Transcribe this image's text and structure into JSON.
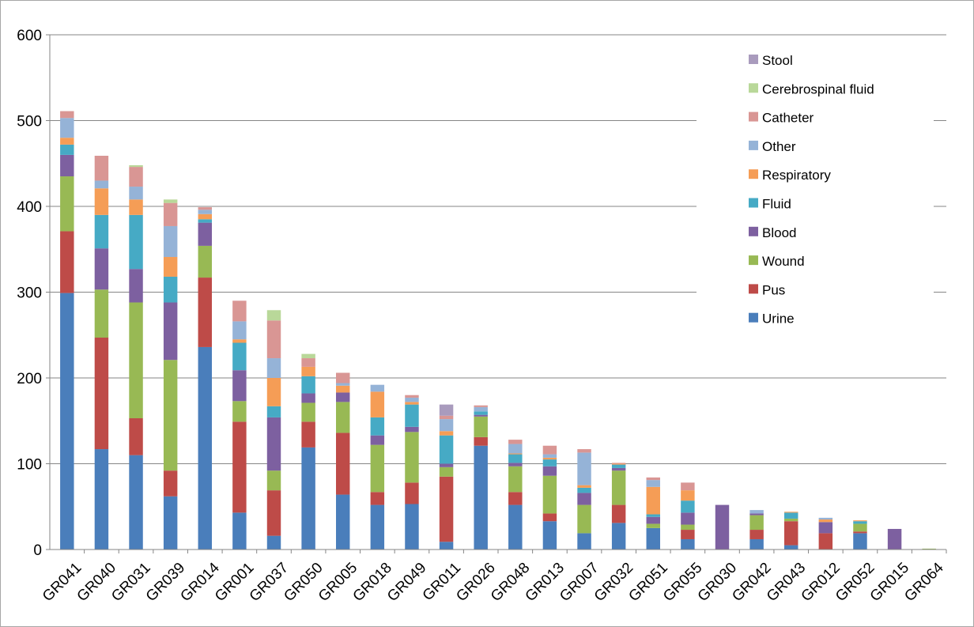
{
  "chart_data": {
    "type": "bar",
    "stacked": true,
    "ylim": [
      0,
      600
    ],
    "yticks": [
      0,
      100,
      200,
      300,
      400,
      500,
      600
    ],
    "grid": true,
    "legend_position": "right",
    "categories": [
      "GR041",
      "GR040",
      "GR031",
      "GR039",
      "GR014",
      "GR001",
      "GR037",
      "GR050",
      "GR005",
      "GR018",
      "GR049",
      "GR011",
      "GR026",
      "GR048",
      "GR013",
      "GR007",
      "GR032",
      "GR051",
      "GR055",
      "GR030",
      "GR042",
      "GR043",
      "GR012",
      "GR052",
      "GR015",
      "GR064"
    ],
    "series": [
      {
        "name": "Urine",
        "color": "#4a7ebb",
        "values": [
          299,
          117,
          110,
          62,
          236,
          43,
          16,
          119,
          64,
          52,
          53,
          9,
          121,
          52,
          33,
          19,
          31,
          25,
          12,
          0,
          12,
          5,
          0,
          19,
          0,
          0
        ]
      },
      {
        "name": "Pus",
        "color": "#be4b48",
        "values": [
          72,
          130,
          43,
          30,
          81,
          106,
          53,
          30,
          72,
          15,
          25,
          76,
          10,
          15,
          9,
          0,
          21,
          0,
          11,
          0,
          11,
          28,
          19,
          2,
          0,
          0
        ]
      },
      {
        "name": "Wound",
        "color": "#98b954",
        "values": [
          64,
          56,
          135,
          129,
          37,
          24,
          23,
          22,
          36,
          55,
          59,
          11,
          24,
          30,
          44,
          33,
          40,
          5,
          6,
          0,
          17,
          3,
          0,
          9,
          0,
          1
        ]
      },
      {
        "name": "Blood",
        "color": "#7d60a0",
        "values": [
          25,
          48,
          39,
          67,
          27,
          36,
          62,
          11,
          11,
          11,
          6,
          4,
          2,
          4,
          11,
          14,
          3,
          8,
          14,
          52,
          2,
          0,
          13,
          0,
          24,
          0
        ]
      },
      {
        "name": "Fluid",
        "color": "#46aac5",
        "values": [
          12,
          39,
          63,
          30,
          4,
          32,
          13,
          20,
          0,
          21,
          26,
          33,
          4,
          10,
          8,
          6,
          4,
          3,
          14,
          0,
          0,
          7,
          0,
          3,
          0,
          0
        ]
      },
      {
        "name": "Respiratory",
        "color": "#f59d56",
        "values": [
          8,
          31,
          18,
          23,
          6,
          4,
          33,
          11,
          8,
          30,
          3,
          5,
          0,
          1,
          2,
          3,
          1,
          32,
          12,
          0,
          0,
          1,
          3,
          1,
          0,
          0
        ]
      },
      {
        "name": "Other",
        "color": "#95b3d7",
        "values": [
          23,
          9,
          15,
          36,
          5,
          21,
          23,
          0,
          3,
          8,
          5,
          14,
          5,
          11,
          4,
          38,
          0,
          8,
          0,
          0,
          4,
          0,
          2,
          0,
          0,
          0
        ]
      },
      {
        "name": "Catheter",
        "color": "#d99694",
        "values": [
          8,
          29,
          23,
          27,
          3,
          24,
          44,
          10,
          12,
          0,
          3,
          4,
          2,
          5,
          10,
          4,
          1,
          3,
          9,
          0,
          0,
          0,
          0,
          0,
          0,
          0
        ]
      },
      {
        "name": "Cerebrospinal fluid",
        "color": "#b9d899",
        "values": [
          0,
          0,
          2,
          4,
          0,
          0,
          12,
          5,
          0,
          0,
          0,
          0,
          0,
          0,
          0,
          0,
          0,
          0,
          0,
          0,
          0,
          0,
          0,
          0,
          0,
          0
        ]
      },
      {
        "name": "Stool",
        "color": "#a99bbd",
        "values": [
          0,
          0,
          0,
          0,
          0,
          0,
          0,
          0,
          0,
          0,
          0,
          13,
          0,
          0,
          0,
          0,
          0,
          0,
          0,
          0,
          0,
          0,
          0,
          0,
          0,
          0
        ]
      }
    ]
  }
}
